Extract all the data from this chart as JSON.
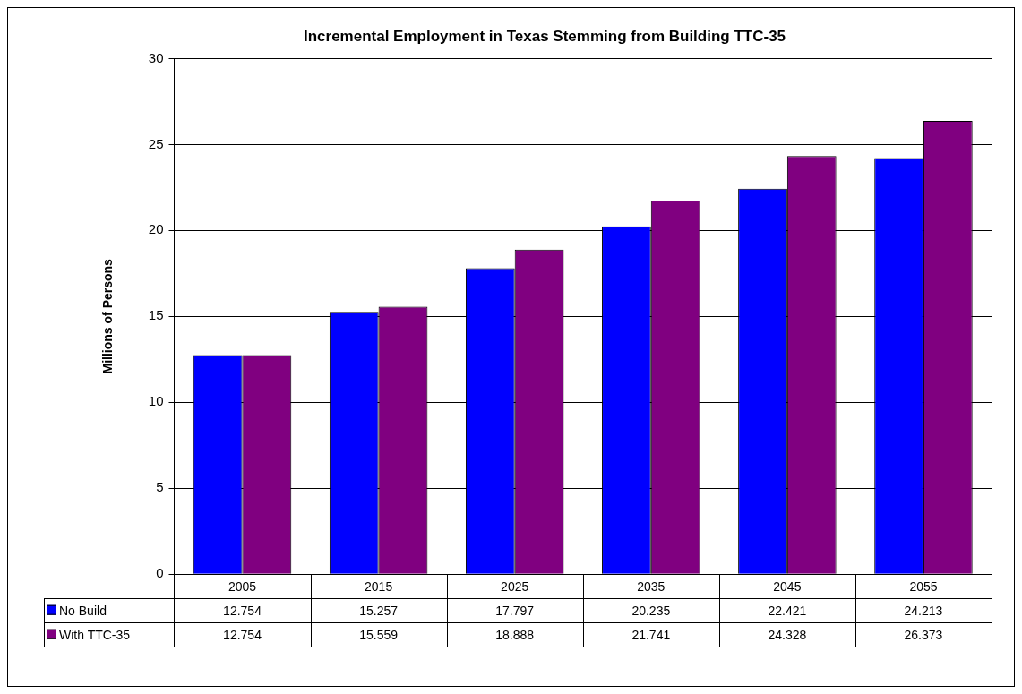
{
  "chart_data": {
    "type": "bar",
    "title": "Incremental Employment in Texas Stemming from Building TTC-35",
    "ylabel": "Millions of Persons",
    "categories": [
      "2005",
      "2015",
      "2025",
      "2035",
      "2045",
      "2055"
    ],
    "series": [
      {
        "name": "No Build",
        "color": "#0000ff",
        "values": [
          12.754,
          15.257,
          17.797,
          20.235,
          22.421,
          24.213
        ]
      },
      {
        "name": "With TTC-35",
        "color": "#800080",
        "values": [
          12.754,
          15.559,
          18.888,
          21.741,
          24.328,
          26.373
        ]
      }
    ],
    "ylim": [
      0,
      30
    ],
    "yticks": [
      0,
      5,
      10,
      15,
      20,
      25,
      30
    ],
    "grid": "y",
    "legend": "bottom left",
    "data_labels": true
  }
}
